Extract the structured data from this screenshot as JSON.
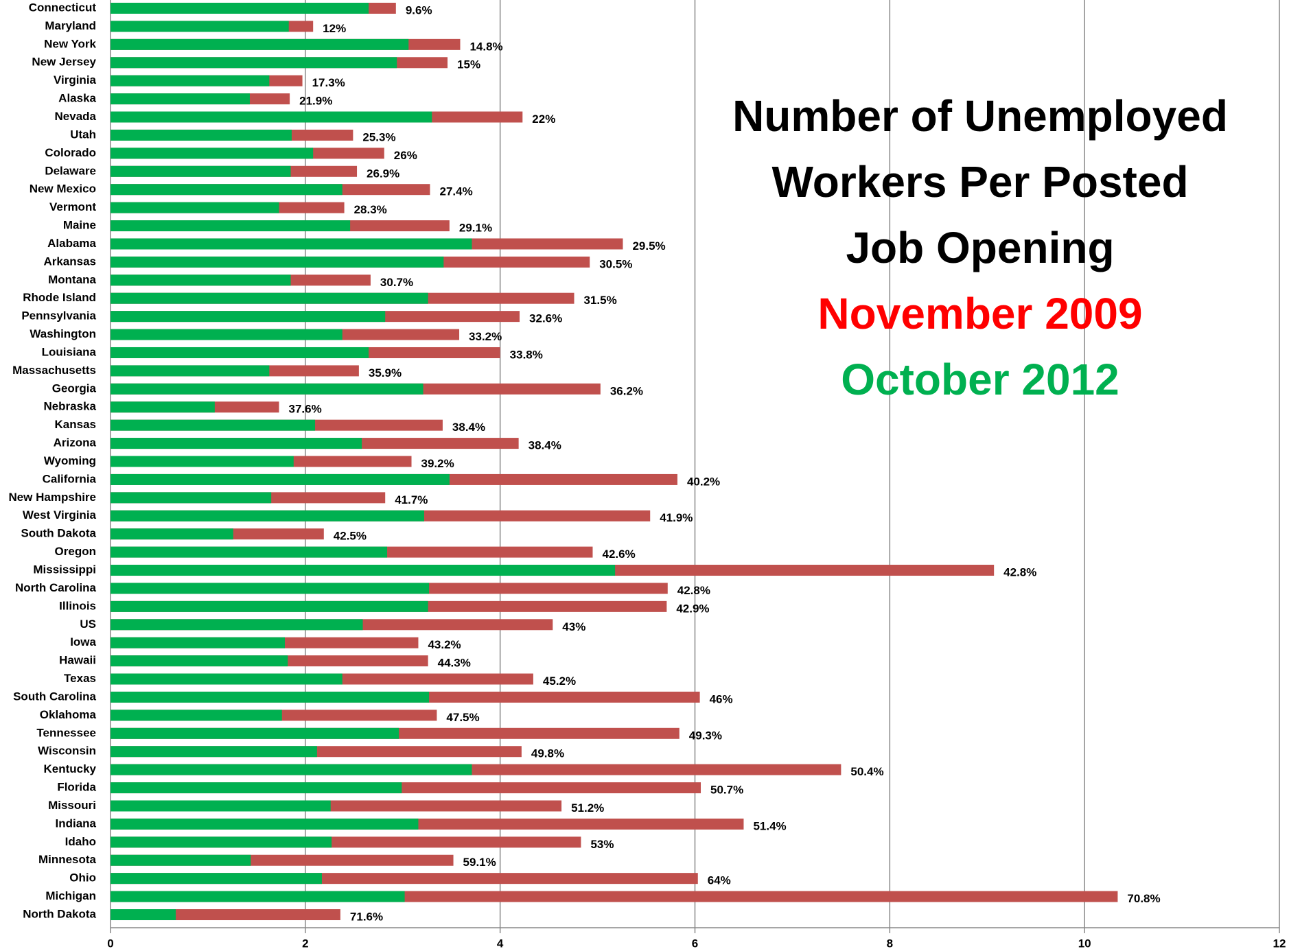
{
  "chart_data": {
    "type": "overlaid-bar",
    "title": [
      "Number of Unemployed",
      "Workers Per Posted",
      "Job Opening"
    ],
    "categories": [
      "Connecticut",
      "Maryland",
      "New York",
      "New Jersey",
      "Virginia",
      "Alaska",
      "Nevada",
      "Utah",
      "Colorado",
      "Delaware",
      "New Mexico",
      "Vermont",
      "Maine",
      "Alabama",
      "Arkansas",
      "Montana",
      "Rhode Island",
      "Pennsylvania",
      "Washington",
      "Louisiana",
      "Massachusetts",
      "Georgia",
      "Nebraska",
      "Kansas",
      "Arizona",
      "Wyoming",
      "California",
      "New Hampshire",
      "West Virginia",
      "South Dakota",
      "Oregon",
      "Mississippi",
      "North Carolina",
      "Illinois",
      "US",
      "Iowa",
      "Hawaii",
      "Texas",
      "South Carolina",
      "Oklahoma",
      "Tennessee",
      "Wisconsin",
      "Kentucky",
      "Florida",
      "Missouri",
      "Indiana",
      "Idaho",
      "Minnesota",
      "Ohio",
      "Michigan",
      "North Dakota"
    ],
    "series": [
      {
        "name": "November 2009",
        "color": "#c0504d",
        "values": [
          2.93,
          2.08,
          3.59,
          3.46,
          1.97,
          1.84,
          4.23,
          2.49,
          2.81,
          2.53,
          3.28,
          2.4,
          3.48,
          5.26,
          4.92,
          2.67,
          4.76,
          4.2,
          3.58,
          4.0,
          2.55,
          5.03,
          1.73,
          3.41,
          4.19,
          3.09,
          5.82,
          2.82,
          5.54,
          2.19,
          4.95,
          9.07,
          5.72,
          5.71,
          4.54,
          3.16,
          3.26,
          4.34,
          6.05,
          3.35,
          5.84,
          4.22,
          7.5,
          6.06,
          4.63,
          6.5,
          4.83,
          3.52,
          6.03,
          10.34,
          2.36
        ]
      },
      {
        "name": "October 2012",
        "color": "#00b050",
        "values": [
          2.65,
          1.83,
          3.06,
          2.94,
          1.63,
          1.43,
          3.3,
          1.86,
          2.08,
          1.85,
          2.38,
          1.73,
          2.46,
          3.71,
          3.42,
          1.85,
          3.26,
          2.82,
          2.38,
          2.65,
          1.63,
          3.21,
          1.07,
          2.1,
          2.58,
          1.88,
          3.48,
          1.65,
          3.22,
          1.26,
          2.84,
          5.18,
          3.27,
          3.26,
          2.59,
          1.79,
          1.82,
          2.38,
          3.27,
          1.76,
          2.96,
          2.12,
          3.71,
          2.99,
          2.26,
          3.16,
          2.27,
          1.44,
          2.17,
          3.02,
          0.67
        ]
      }
    ],
    "annotations": [
      "9.6%",
      "12%",
      "14.8%",
      "15%",
      "17.3%",
      "21.9%",
      "22%",
      "25.3%",
      "26%",
      "26.9%",
      "27.4%",
      "28.3%",
      "29.1%",
      "29.5%",
      "30.5%",
      "30.7%",
      "31.5%",
      "32.6%",
      "33.2%",
      "33.8%",
      "35.9%",
      "36.2%",
      "37.6%",
      "38.4%",
      "38.4%",
      "39.2%",
      "40.2%",
      "41.7%",
      "41.9%",
      "42.5%",
      "42.6%",
      "42.8%",
      "42.8%",
      "42.9%",
      "43%",
      "43.2%",
      "44.3%",
      "45.2%",
      "46%",
      "47.5%",
      "49.3%",
      "49.8%",
      "50.4%",
      "50.7%",
      "51.2%",
      "51.4%",
      "53%",
      "59.1%",
      "64%",
      "70.8%",
      "71.6%"
    ],
    "xlim": [
      0,
      12
    ],
    "xticks": [
      0,
      2,
      4,
      6,
      8,
      10,
      12
    ],
    "grid": true
  }
}
